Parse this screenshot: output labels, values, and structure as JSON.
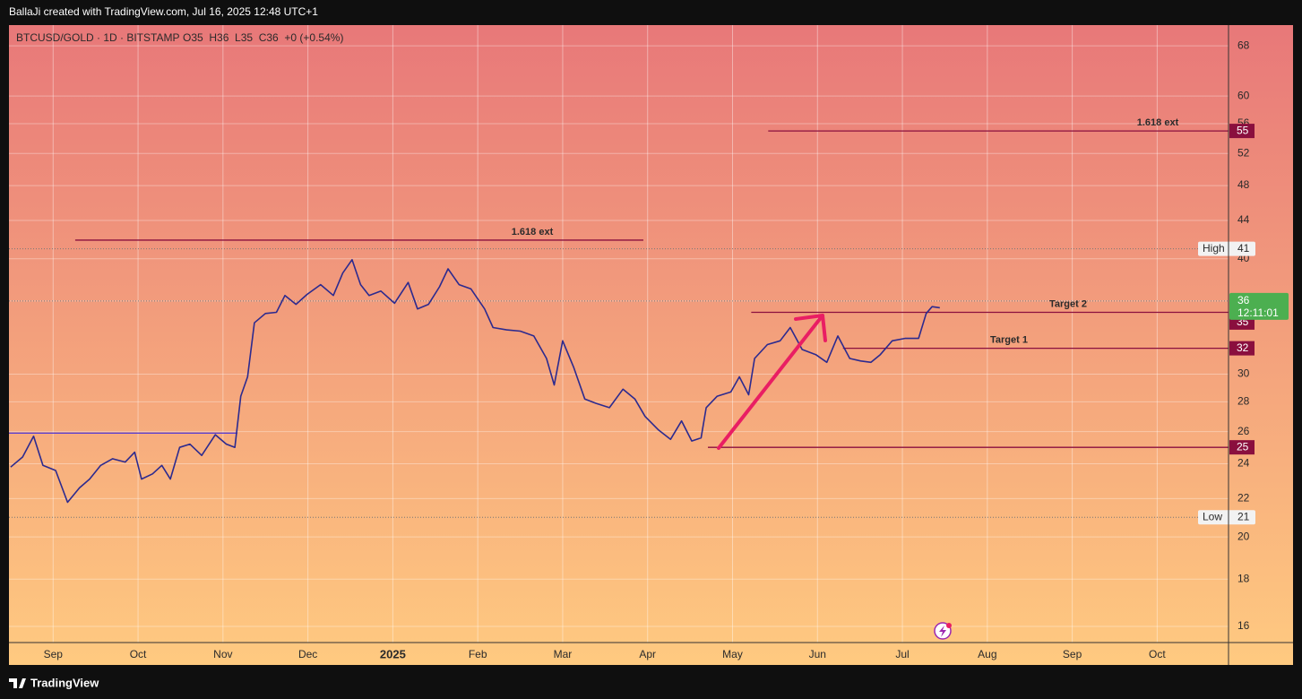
{
  "header": {
    "credit": "BallaJi created with TradingView.com, Jul 16, 2025 12:48 UTC+1"
  },
  "footer": {
    "brand": "TradingView"
  },
  "chart_data": {
    "type": "line",
    "legend_text": "O35  H36  L35  C36  +0 (+0.54%)",
    "log_scale": true,
    "grid": true,
    "background_gradient": [
      "#e87879",
      "#ffca80"
    ],
    "x": [
      -0.5,
      -0.36,
      -0.23,
      -0.12,
      0.03,
      0.17,
      0.31,
      0.43,
      0.56,
      0.7,
      0.85,
      0.96,
      1.04,
      1.17,
      1.28,
      1.38,
      1.49,
      1.61,
      1.75,
      1.91,
      2.04,
      2.14,
      2.21,
      2.29,
      2.37,
      2.5,
      2.63,
      2.73,
      2.86,
      2.99,
      3.15,
      3.3,
      3.41,
      3.52,
      3.62,
      3.72,
      3.86,
      4.02,
      4.18,
      4.29,
      4.42,
      4.55,
      4.65,
      4.78,
      4.92,
      5.08,
      5.18,
      5.34,
      5.5,
      5.66,
      5.81,
      5.9,
      6.0,
      6.13,
      6.26,
      6.39,
      6.55,
      6.71,
      6.85,
      6.97,
      7.13,
      7.27,
      7.4,
      7.52,
      7.63,
      7.69,
      7.82,
      7.98,
      8.08,
      8.19,
      8.26,
      8.41,
      8.56,
      8.68,
      8.82,
      8.98,
      9.11,
      9.24,
      9.38,
      9.51,
      9.63,
      9.74,
      9.88,
      10.03,
      10.19,
      10.28,
      10.35,
      10.44
    ],
    "series": [
      {
        "name": "BTCUSD/GOLD · 1D · BITSTAMP",
        "color": "#2c2a8f",
        "values": [
          23.8,
          24.4,
          25.7,
          23.9,
          23.6,
          21.8,
          22.6,
          23.1,
          23.9,
          24.3,
          24.1,
          24.7,
          23.1,
          23.4,
          23.9,
          23.1,
          25.0,
          25.2,
          24.5,
          25.8,
          25.2,
          25.0,
          28.4,
          29.8,
          34.1,
          34.9,
          35.0,
          36.5,
          35.7,
          36.6,
          37.5,
          36.5,
          38.6,
          39.9,
          37.5,
          36.5,
          36.9,
          35.8,
          37.7,
          35.3,
          35.7,
          37.3,
          39.0,
          37.5,
          37.1,
          35.3,
          33.7,
          33.5,
          33.4,
          33.0,
          31.2,
          29.2,
          32.6,
          30.5,
          28.2,
          27.9,
          27.6,
          28.9,
          28.2,
          27.0,
          26.1,
          25.5,
          26.7,
          25.4,
          25.6,
          27.6,
          28.4,
          28.7,
          29.8,
          28.5,
          31.2,
          32.3,
          32.6,
          33.7,
          31.9,
          31.5,
          30.9,
          33.0,
          31.2,
          31.0,
          30.9,
          31.5,
          32.6,
          32.8,
          32.8,
          34.9,
          35.5,
          35.4
        ]
      }
    ],
    "xlim": [
      -0.52,
      13.84
    ],
    "xticks": [
      {
        "value": 0,
        "label": "Sep"
      },
      {
        "value": 1,
        "label": "Oct"
      },
      {
        "value": 2,
        "label": "Nov"
      },
      {
        "value": 3,
        "label": "Dec"
      },
      {
        "value": 4,
        "label": "2025",
        "emphasis": true
      },
      {
        "value": 5,
        "label": "Feb"
      },
      {
        "value": 6,
        "label": "Mar"
      },
      {
        "value": 7,
        "label": "Apr"
      },
      {
        "value": 8,
        "label": "May"
      },
      {
        "value": 9,
        "label": "Jun"
      },
      {
        "value": 10,
        "label": "Jul"
      },
      {
        "value": 11,
        "label": "Aug"
      },
      {
        "value": 12,
        "label": "Sep"
      },
      {
        "value": 13,
        "label": "Oct"
      }
    ],
    "ylim": [
      15.37,
      71.6
    ],
    "yticks": [
      16,
      18,
      20,
      22,
      24,
      26,
      28,
      30,
      36,
      40,
      44,
      48,
      52,
      56,
      60,
      68
    ],
    "level_color": "#8a0f3e",
    "levels": [
      {
        "label": "1.618 ext",
        "value": 55,
        "from": 8.42,
        "tag": true
      },
      {
        "label": "1.618 ext",
        "value": 41.9,
        "from": 0.26,
        "to": 6.95
      },
      {
        "label": "Target 2",
        "value": 35,
        "from": 8.22,
        "tag": true
      },
      {
        "label": "Target 1",
        "value": 32,
        "from": 9.3,
        "tag": true
      },
      {
        "value": 25,
        "from": 7.71,
        "tag": true
      },
      {
        "value": 25.9,
        "to": 2.17,
        "color": "#5a3fd0"
      }
    ],
    "markers": [
      {
        "label": "High",
        "value": 41
      },
      {
        "label": "Low",
        "value": 21
      }
    ],
    "last": {
      "value": 36,
      "countdown": "12:11:01",
      "color": "#4caf50"
    }
  }
}
